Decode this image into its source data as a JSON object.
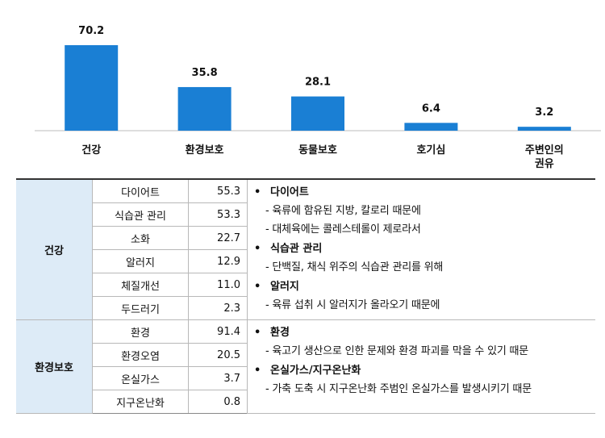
{
  "chart_data": {
    "type": "bar",
    "categories": [
      "건강",
      "환경보호",
      "동물보호",
      "호기심",
      "주변인의\n권유"
    ],
    "values": [
      70.2,
      35.8,
      28.1,
      6.4,
      3.2
    ],
    "ylim": [
      0,
      75
    ],
    "grid": false,
    "bar_color": "#1a7fd4"
  },
  "table": {
    "groups": [
      {
        "name": "건강",
        "rows": [
          {
            "item": "다이어트",
            "value": "55.3"
          },
          {
            "item": "식습관 관리",
            "value": "53.3"
          },
          {
            "item": "소화",
            "value": "22.7"
          },
          {
            "item": "알러지",
            "value": "12.9"
          },
          {
            "item": "체질개선",
            "value": "11.0"
          },
          {
            "item": "두드러기",
            "value": "2.3"
          }
        ],
        "notes": [
          {
            "title": "다이어트",
            "lines": [
              "- 육류에 함유된 지방, 칼로리 때문에",
              "- 대체육에는 콜레스테롤이 제로라서"
            ]
          },
          {
            "title": "식습관 관리",
            "lines": [
              "- 단백질, 채식 위주의 식습관 관리를 위해"
            ]
          },
          {
            "title": "알러지",
            "lines": [
              "- 육류 섭취 시 알러지가 올라오기 때문에"
            ]
          }
        ]
      },
      {
        "name": "환경보호",
        "rows": [
          {
            "item": "환경",
            "value": "91.4"
          },
          {
            "item": "환경오염",
            "value": "20.5"
          },
          {
            "item": "온실가스",
            "value": "3.7"
          },
          {
            "item": "지구온난화",
            "value": "0.8"
          }
        ],
        "notes": [
          {
            "title": "환경",
            "lines": [
              "- 육고기 생산으로 인한 문제와 환경 파괴를 막을 수 있기 때문"
            ]
          },
          {
            "title": "온실가스/지구온난화",
            "lines": [
              "- 가축 도축 시 지구온난화 주범인 온실가스를 발생시키기 때문"
            ]
          }
        ]
      }
    ]
  }
}
